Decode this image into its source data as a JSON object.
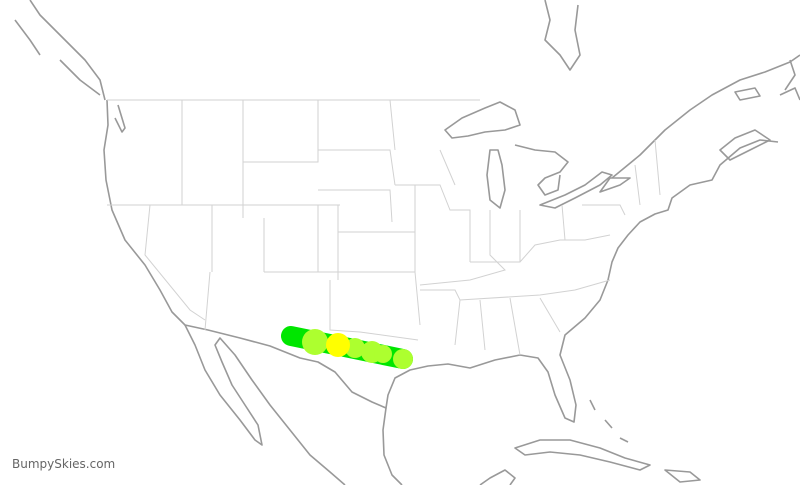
{
  "brand": {
    "text": "BumpySkies.com"
  },
  "colors": {
    "coastline": "#999999",
    "state_border": "#d2d2d2",
    "route_smooth": "#00e600",
    "route_light": "#adff2f",
    "route_moderate": "#ffff00"
  },
  "route": {
    "segments": [
      {
        "level": "smooth"
      },
      {
        "level": "light"
      },
      {
        "level": "moderate"
      },
      {
        "level": "light"
      },
      {
        "level": "light"
      },
      {
        "level": "light"
      },
      {
        "level": "light"
      }
    ]
  }
}
